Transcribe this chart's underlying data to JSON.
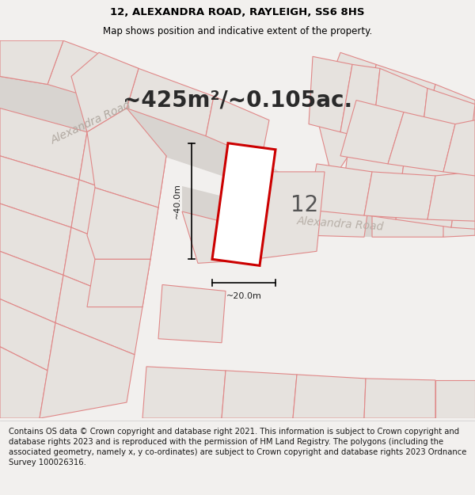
{
  "title_line1": "12, ALEXANDRA ROAD, RAYLEIGH, SS6 8HS",
  "title_line2": "Map shows position and indicative extent of the property.",
  "area_text": "~425m²/~0.105ac.",
  "plot_number": "12",
  "dim_width": "~20.0m",
  "dim_height": "~40.0m",
  "road_label_top": "Alexandra Road",
  "road_label_mid": "Alexandra Road",
  "footer_text": "Contains OS data © Crown copyright and database right 2021. This information is subject to Crown copyright and database rights 2023 and is reproduced with the permission of HM Land Registry. The polygons (including the associated geometry, namely x, y co-ordinates) are subject to Crown copyright and database rights 2023 Ordnance Survey 100026316.",
  "bg_color": "#f2f0ee",
  "map_bg": "#f2f0ee",
  "plot_fill": "#ffffff",
  "plot_edge": "#cc0000",
  "parcel_fill": "#e6e2de",
  "parcel_edge": "#e08888",
  "road_fill": "#d8d4d0",
  "footer_bg": "#ffffff",
  "title_fontsize": 9.5,
  "subtitle_fontsize": 8.5,
  "area_fontsize": 20,
  "plot_label_fontsize": 20,
  "road_label_fontsize": 10,
  "footer_fontsize": 7.2,
  "dim_fontsize": 8
}
